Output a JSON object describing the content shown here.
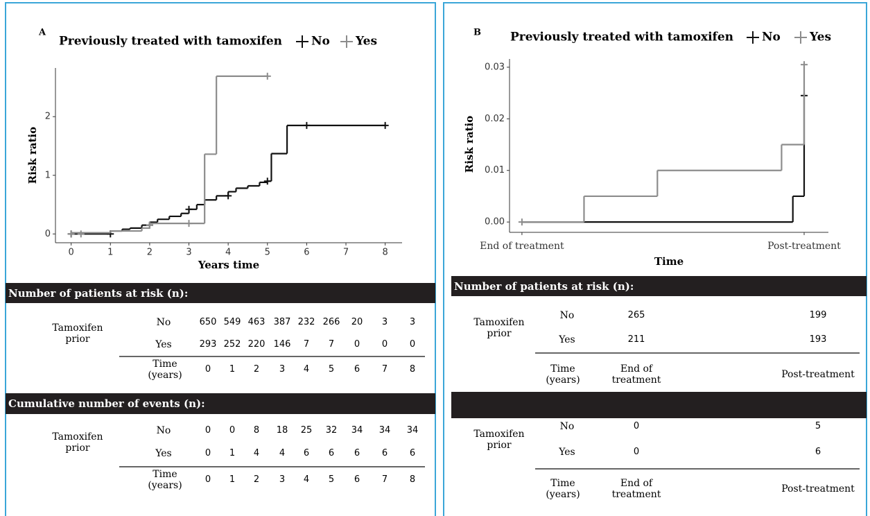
{
  "chart_data": [
    {
      "type": "step",
      "panel": "A",
      "title": "Previously treated with tamoxifen",
      "xlabel": "Years time",
      "ylabel": "Risk ratio",
      "xlim": [
        -0.4,
        8.43
      ],
      "ylim": [
        -0.15,
        2.83
      ],
      "xticks": [
        0,
        1,
        2,
        3,
        4,
        5,
        6,
        7,
        8
      ],
      "yticks": [
        0,
        1,
        2
      ],
      "series": [
        {
          "name": "No",
          "color": "#111111",
          "x": [
            0,
            1,
            1.3,
            1.5,
            1.8,
            2,
            2.2,
            2.5,
            2.8,
            3,
            3.2,
            3.4,
            3.7,
            4,
            4.2,
            4.5,
            4.8,
            5,
            5.1,
            5.5,
            8
          ],
          "values": [
            0,
            0.05,
            0.08,
            0.1,
            0.15,
            0.2,
            0.25,
            0.3,
            0.35,
            0.42,
            0.5,
            0.58,
            0.65,
            0.72,
            0.78,
            0.82,
            0.88,
            0.9,
            1.37,
            1.85,
            1.85
          ],
          "censor_x": [
            0,
            1,
            2,
            3,
            4,
            5,
            6,
            8
          ],
          "censor_y": [
            0,
            0,
            0.15,
            0.42,
            0.65,
            0.9,
            1.85,
            1.85
          ]
        },
        {
          "name": "Yes",
          "color": "#8c8c8c",
          "x": [
            0,
            1,
            1.8,
            2,
            3.4,
            3.7,
            5
          ],
          "values": [
            0.02,
            0.05,
            0.1,
            0.18,
            1.36,
            2.69,
            2.69
          ],
          "censor_x": [
            0,
            0.25,
            2,
            3,
            5
          ],
          "censor_y": [
            0,
            0,
            0.15,
            0.18,
            2.69
          ]
        }
      ]
    },
    {
      "type": "step",
      "panel": "B",
      "title": "Previously treated with tamoxifen",
      "xlabel": "Time",
      "ylabel": "Risk ratio",
      "xlim": [
        -0.044,
        1.086
      ],
      "ylim": [
        -0.002,
        0.0316
      ],
      "xticks": [
        {
          "value": 0,
          "label": "End of treatment"
        },
        {
          "value": 1,
          "label": "Post-treatment"
        }
      ],
      "yticks": [
        {
          "value": 0,
          "label": "0.00"
        },
        {
          "value": 0.01,
          "label": "0.01"
        },
        {
          "value": 0.02,
          "label": "0.02"
        },
        {
          "value": 0.03,
          "label": "0.03"
        }
      ],
      "series": [
        {
          "name": "No",
          "color": "#111111",
          "x": [
            0,
            0.96,
            1
          ],
          "values": [
            0,
            0.005,
            0.025
          ],
          "censor_x": [
            1
          ],
          "censor_y": [
            0.0245
          ]
        },
        {
          "name": "Yes",
          "color": "#8c8c8c",
          "x": [
            0,
            0.22,
            0.48,
            0.92,
            1
          ],
          "values": [
            0,
            0.005,
            0.01,
            0.015,
            0.0305
          ],
          "censor_x": [
            0,
            1
          ],
          "censor_y": [
            0,
            0.0305
          ]
        }
      ]
    }
  ],
  "tables": [
    {
      "sections": [
        {
          "title": "Number of patients at risk (n):",
          "group": "Tamoxifen prior",
          "time_label": "Time (years)",
          "rows": [
            {
              "label": "No",
              "values": [
                650,
                549,
                463,
                387,
                232,
                266,
                20,
                3,
                3
              ]
            },
            {
              "label": "Yes",
              "values": [
                293,
                252,
                220,
                146,
                7,
                7,
                0,
                0,
                0
              ]
            }
          ],
          "times": [
            0,
            1,
            2,
            3,
            4,
            5,
            6,
            7,
            8
          ]
        },
        {
          "title": "Cumulative number of events (n):",
          "group": "Tamoxifen prior",
          "time_label": "Time (years)",
          "rows": [
            {
              "label": "No",
              "values": [
                0,
                0,
                8,
                18,
                25,
                32,
                34,
                34,
                34
              ]
            },
            {
              "label": "Yes",
              "values": [
                0,
                1,
                4,
                4,
                6,
                6,
                6,
                6,
                6
              ]
            }
          ],
          "times": [
            0,
            1,
            2,
            3,
            4,
            5,
            6,
            7,
            8
          ]
        }
      ]
    },
    {
      "sections": [
        {
          "title": "Number of patients at risk (n):",
          "group": "Tamoxifen prior",
          "time_label": "Time (years)",
          "rows": [
            {
              "label": "No",
              "values": [
                265,
                199
              ]
            },
            {
              "label": "Yes",
              "values": [
                211,
                193
              ]
            }
          ],
          "times": [
            "End of treatment",
            "Post-treatment"
          ]
        },
        {
          "group": "Tamoxifen prior",
          "time_label": "Time (years)",
          "rows": [
            {
              "label": "No",
              "values": [
                0,
                5
              ]
            },
            {
              "label": "Yes",
              "values": [
                0,
                6
              ]
            }
          ],
          "times": [
            "End of treatment",
            "Post-treatment"
          ]
        }
      ]
    }
  ]
}
